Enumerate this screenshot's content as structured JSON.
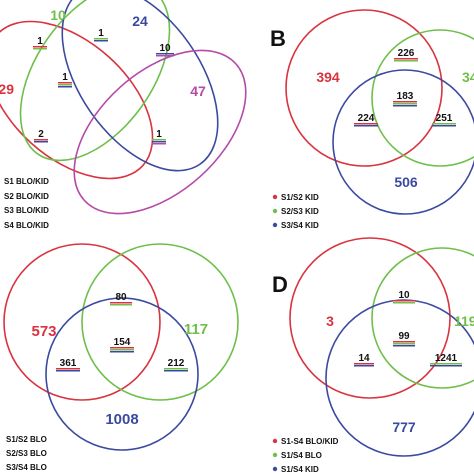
{
  "panel_a": {
    "counts": {
      "s1_only": "29",
      "s2_only": "10",
      "s3_only": "24",
      "s4_only": "47",
      "s1_s2": "1",
      "s2_s3": "1",
      "s3_s4": "10",
      "s1_s2_s3": "1",
      "s1_s3": "2",
      "s2_s3_s4": "1"
    },
    "legend": [
      "S1 BLO/KID",
      "S2 BLO/KID",
      "S3 BLO/KID",
      "S4 BLO/KID"
    ]
  },
  "panel_b": {
    "letter": "B",
    "counts": {
      "red_only": "394",
      "green_only": "34",
      "blue_only": "506",
      "red_green": "226",
      "all": "183",
      "red_blue": "224",
      "green_blue": "251"
    },
    "legend": [
      "S1/S2 KID",
      "S2/S3 KID",
      "S3/S4 KID"
    ]
  },
  "panel_c": {
    "counts": {
      "red_only": "573",
      "green_only": "117",
      "blue_only": "1008",
      "red_green": "80",
      "all": "154",
      "red_blue": "361",
      "green_blue": "212"
    },
    "legend": [
      "S1/S2 BLO",
      "S2/S3 BLO",
      "S3/S4 BLO"
    ]
  },
  "panel_d": {
    "letter": "D",
    "counts": {
      "red_only": "3",
      "green_only": "119",
      "blue_only": "777",
      "red_green": "10",
      "all": "99",
      "red_blue": "14",
      "green_blue": "1241"
    },
    "legend": [
      "S1-S4 BLO/KID",
      "S1/S4 BLO",
      "S1/S4 KID"
    ]
  },
  "colors": {
    "red": "#d9333f",
    "green": "#6fbf4a",
    "blue": "#3b4aa0",
    "magenta": "#b54aa8",
    "text": "#111111"
  }
}
